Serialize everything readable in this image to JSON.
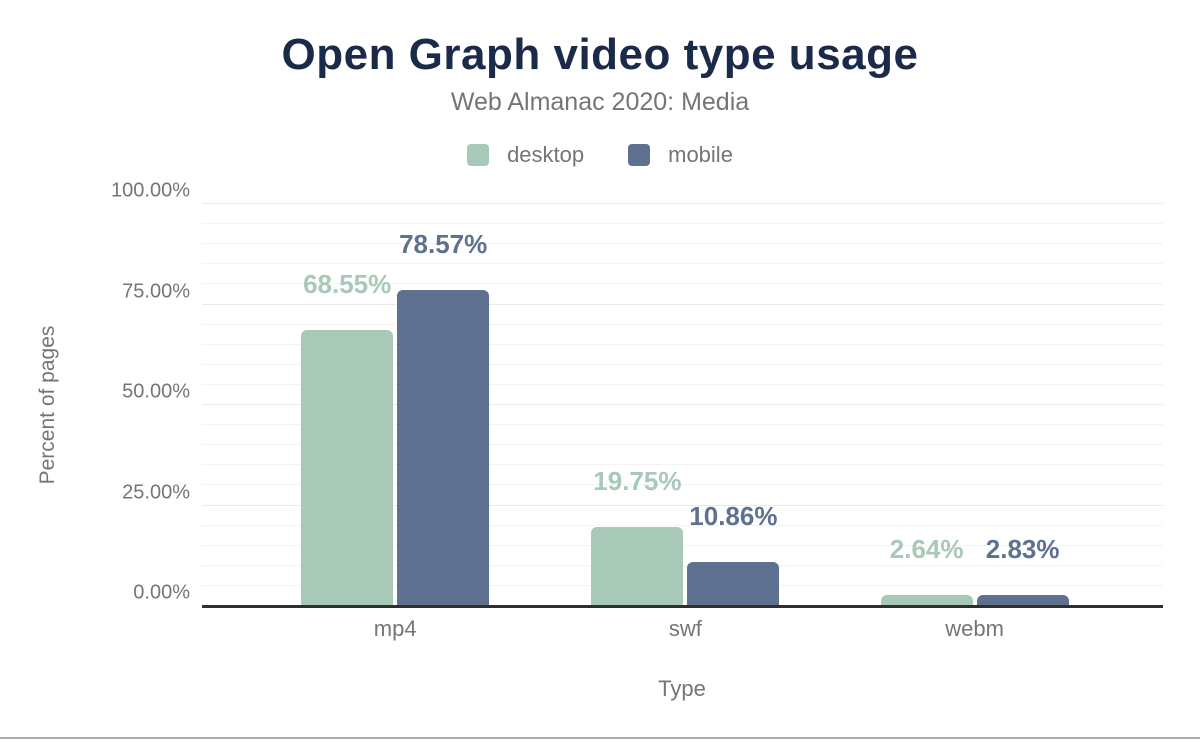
{
  "figure": {
    "title": "Open Graph video type usage",
    "subtitle": "Web Almanac 2020: Media"
  },
  "legend": {
    "items": [
      {
        "label": "desktop",
        "color": "#a8c9b7"
      },
      {
        "label": "mobile",
        "color": "#5f7190"
      }
    ]
  },
  "axes": {
    "y_title": "Percent of pages",
    "x_title": "Type",
    "y_ticks": [
      {
        "label": "0.00%",
        "value": 0
      },
      {
        "label": "25.00%",
        "value": 25
      },
      {
        "label": "50.00%",
        "value": 50
      },
      {
        "label": "75.00%",
        "value": 75
      },
      {
        "label": "100.00%",
        "value": 100
      }
    ]
  },
  "chart_data": {
    "type": "bar",
    "title": "Open Graph video type usage",
    "subtitle": "Web Almanac 2020: Media",
    "categories": [
      "mp4",
      "swf",
      "webm"
    ],
    "series": [
      {
        "name": "desktop",
        "color": "#a8c9b7",
        "values": [
          68.55,
          19.75,
          2.64
        ],
        "labels": [
          "68.55%",
          "19.75%",
          "2.64%"
        ]
      },
      {
        "name": "mobile",
        "color": "#5f7190",
        "values": [
          78.57,
          10.86,
          2.83
        ],
        "labels": [
          "78.57%",
          "10.86%",
          "2.83%"
        ]
      }
    ],
    "xlabel": "Type",
    "ylabel": "Percent of pages",
    "ylim": [
      0,
      100
    ],
    "y_major_step": 25,
    "y_minor_step": 5,
    "grid": true,
    "legend_position": "top",
    "data_labels": true
  },
  "colors": {
    "title": "#1a2b49",
    "muted_text": "#757575",
    "desktop": "#a8c9b7",
    "mobile": "#5f7190",
    "axis_line": "#2f2f2f",
    "grid_minor": "#f3f3f3",
    "grid_major": "#e9e9e9",
    "footer_divider": "#ababab"
  }
}
